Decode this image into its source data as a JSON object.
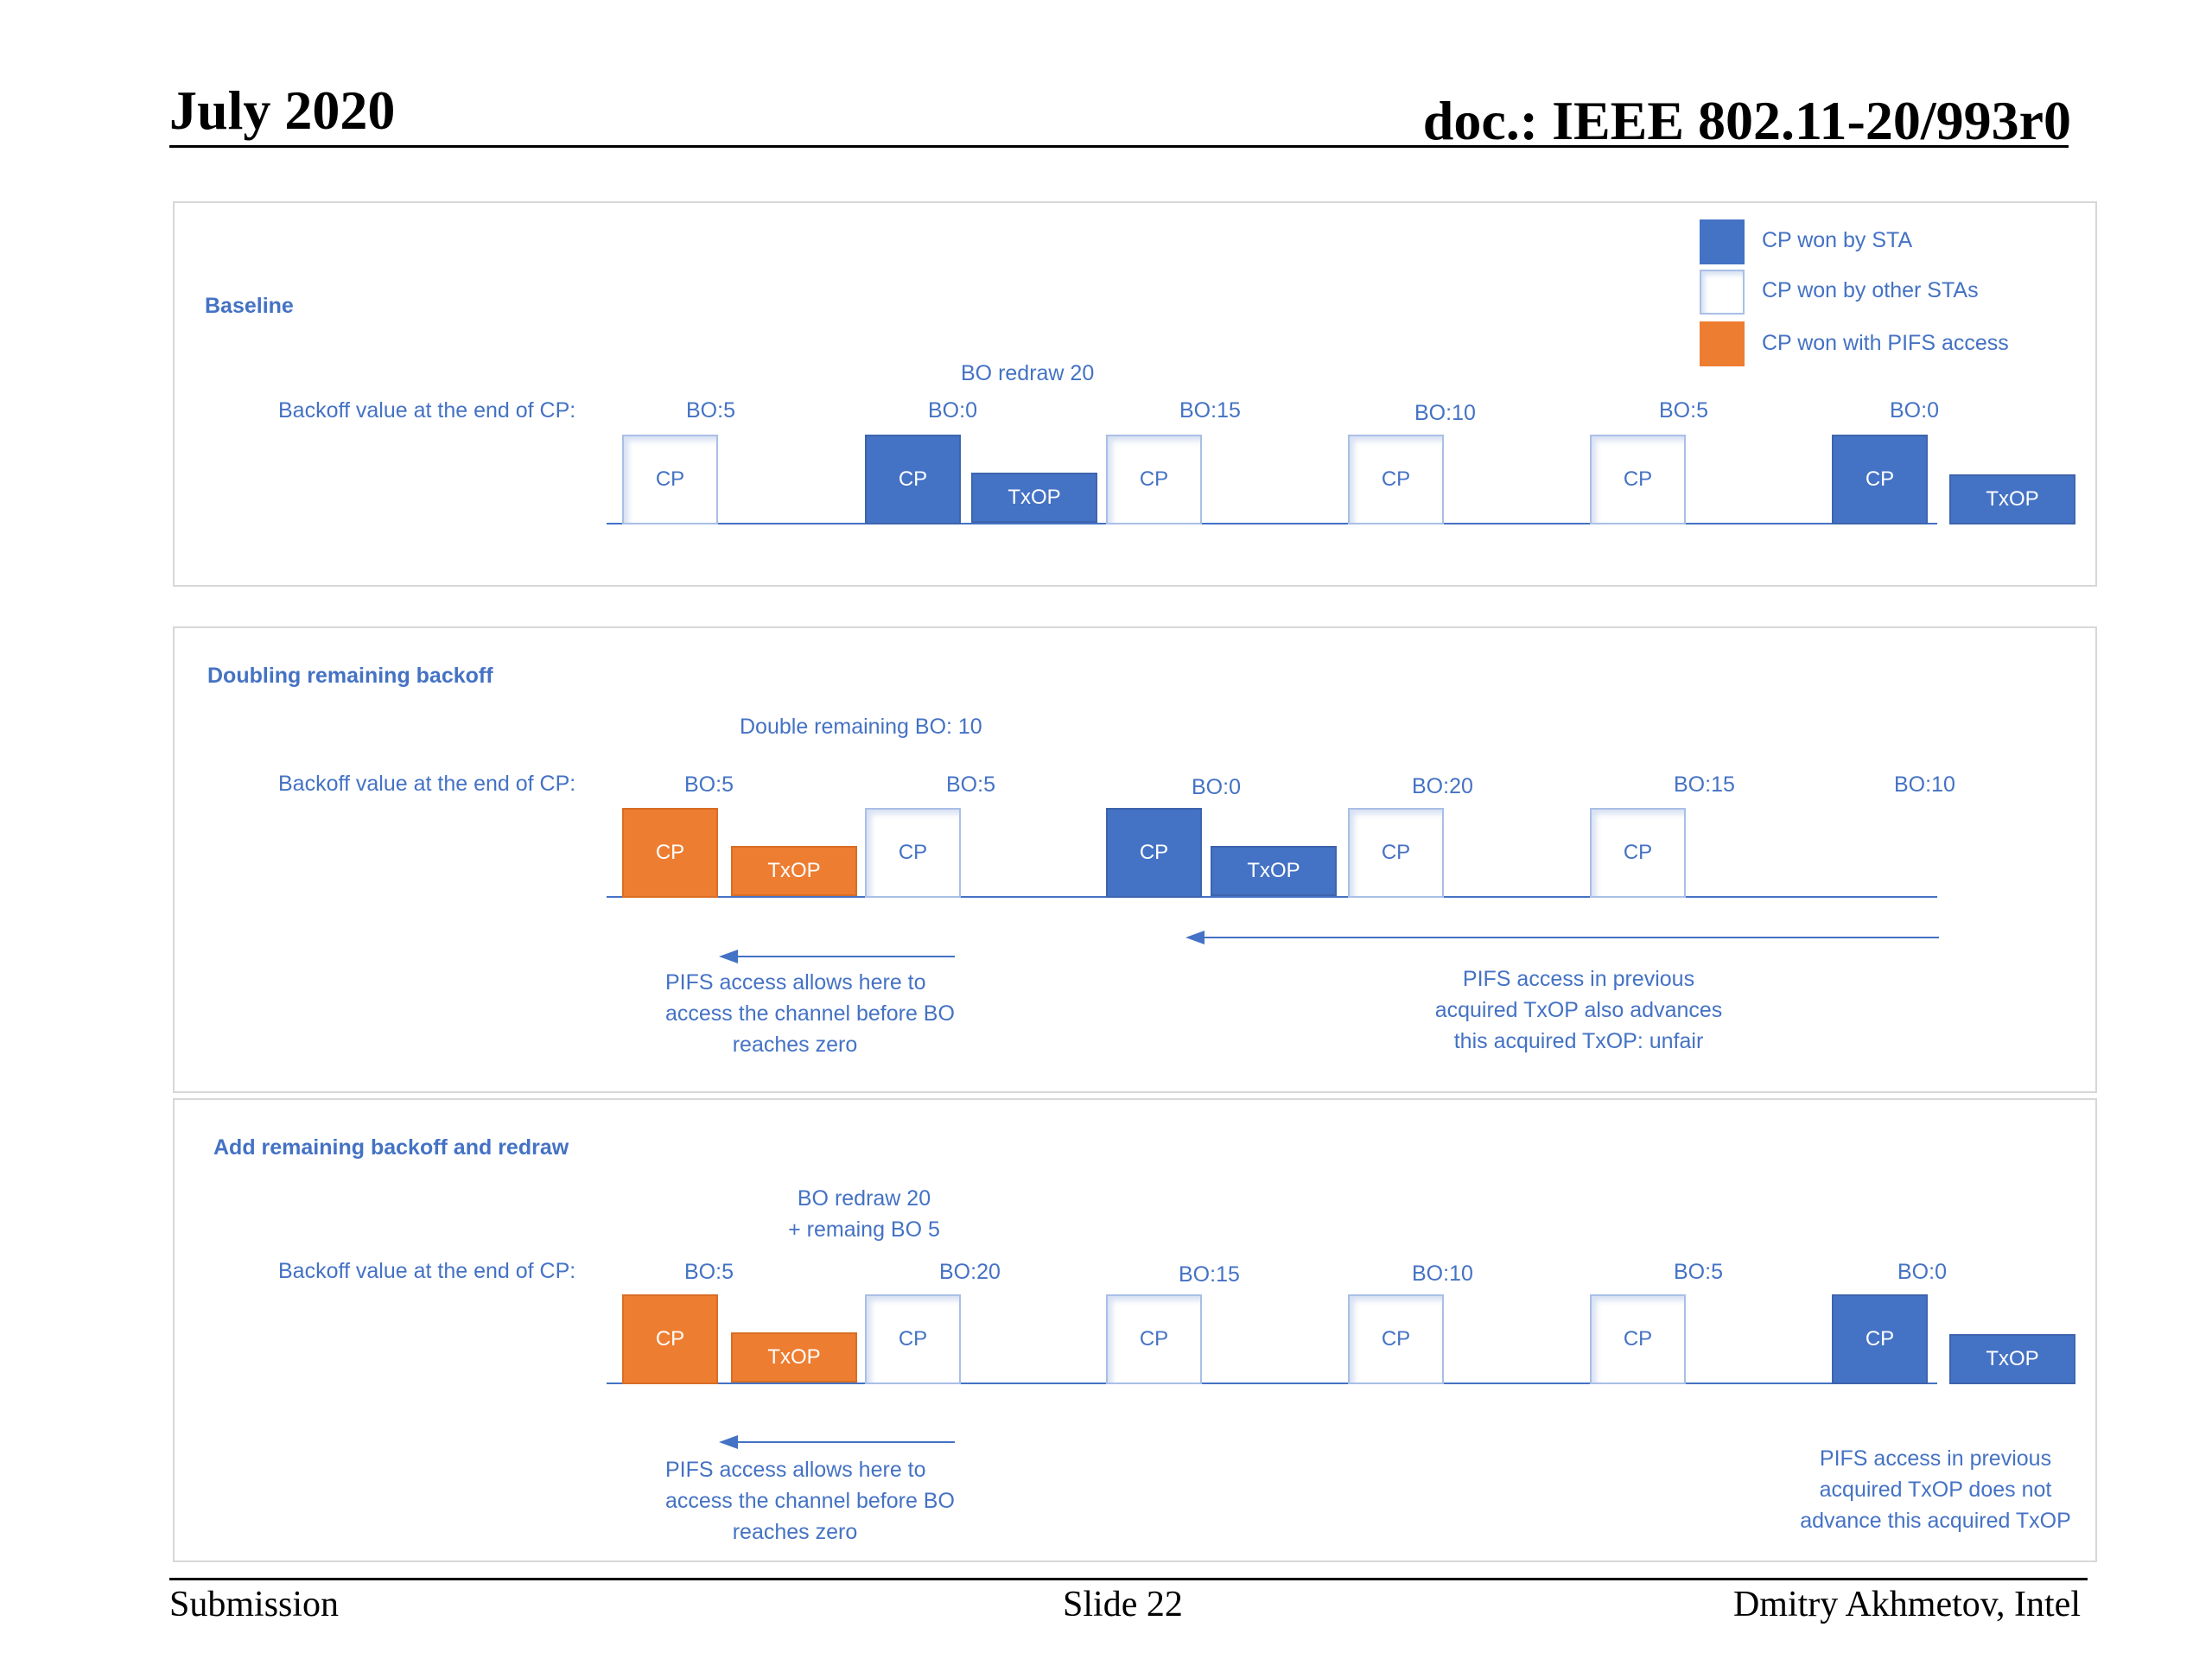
{
  "header": {
    "date": "July 2020",
    "doc": "doc.: IEEE 802.11-20/993r0"
  },
  "legend": {
    "items": [
      {
        "label": "CP won by STA",
        "color": "#4472c4"
      },
      {
        "label": "CP won by other STAs",
        "color": "#ffffff"
      },
      {
        "label": "CP won with PIFS access",
        "color": "#ed7d31"
      }
    ]
  },
  "labels": {
    "cp": "CP",
    "txop": "TxOP"
  },
  "baseline": {
    "title": "Baseline",
    "row_label": "Backoff value at the end of CP:",
    "note": "BO redraw 20",
    "bo": [
      "BO:5",
      "BO:0",
      "BO:15",
      "BO:10",
      "BO:5",
      "BO:0"
    ]
  },
  "doubling": {
    "title": "Doubling remaining backoff",
    "row_label": "Backoff value at the end of CP:",
    "note": "Double remaining BO: 10",
    "bo": [
      "BO:5",
      "BO:5",
      "BO:0",
      "BO:20",
      "BO:15",
      "BO:10"
    ],
    "annotation_left": [
      "PIFS access allows here to",
      "access the channel before BO",
      "reaches zero"
    ],
    "annotation_right": [
      "PIFS access in previous",
      "acquired TxOP also advances",
      "this acquired TxOP: unfair"
    ]
  },
  "addredraw": {
    "title": "Add remaining backoff and redraw",
    "row_label": "Backoff value at the end of CP:",
    "note": [
      "BO redraw 20",
      "+ remaing BO 5"
    ],
    "bo": [
      "BO:5",
      "BO:20",
      "BO:15",
      "BO:10",
      "BO:5",
      "BO:0"
    ],
    "annotation_left": [
      "PIFS access allows here to",
      "access the channel before BO",
      "reaches zero"
    ],
    "annotation_right": [
      "PIFS access in previous",
      "acquired TxOP does not",
      "advance this acquired TxOP"
    ]
  },
  "footer": {
    "left": "Submission",
    "center": "Slide 22",
    "right": "Dmitry Akhmetov, Intel"
  }
}
